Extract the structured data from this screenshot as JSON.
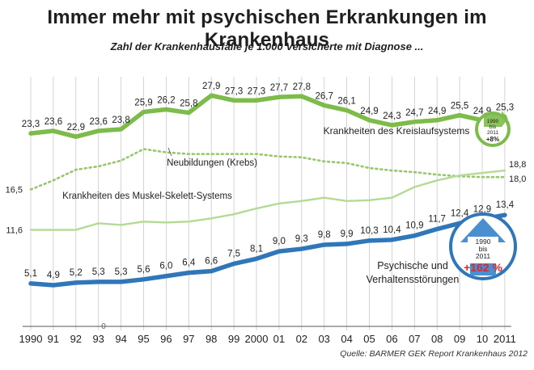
{
  "header": {
    "title": "Immer mehr mit psychischen Erkrankungen im Krankenhaus",
    "subtitle": "Zahl der Krankenhausfälle je 1.000 Versicherte mit Diagnose ..."
  },
  "source": "Quelle: BARMER GEK Report Krankenhaus 2012",
  "colors": {
    "kreislauf": "#7dbb4a",
    "neubildungen": "#97c76b",
    "muskel": "#b5da95",
    "psychisch": "#2f77b8",
    "badge_red": "#d9282f",
    "badge_blue": "#4a8fd0"
  },
  "chart_data": {
    "type": "line",
    "x": [
      "1990",
      "91",
      "92",
      "93",
      "94",
      "95",
      "96",
      "97",
      "98",
      "99",
      "2000",
      "01",
      "02",
      "03",
      "04",
      "05",
      "06",
      "07",
      "08",
      "09",
      "10",
      "2011"
    ],
    "zero_label": "0",
    "ylim": [
      0,
      30
    ],
    "grid": true,
    "series": [
      {
        "name": "Krankheiten des Kreislaufsystems",
        "style": "solid-thick",
        "values": [
          23.3,
          23.6,
          22.9,
          23.6,
          23.8,
          25.9,
          26.2,
          25.8,
          27.9,
          27.3,
          27.3,
          27.7,
          27.8,
          26.7,
          26.1,
          24.9,
          24.3,
          24.7,
          24.9,
          25.5,
          24.9,
          25.3
        ],
        "value_labels": [
          "23,3",
          "23,6",
          "22,9",
          "23,6",
          "23,8",
          "25,9",
          "26,2",
          "25,8",
          "27,9",
          "27,3",
          "27,3",
          "27,7",
          "27,8",
          "26,7",
          "26,1",
          "24,9",
          "24,3",
          "24,7",
          "24,9",
          "25,5",
          "24,9",
          "25,3"
        ]
      },
      {
        "name": "Neubildungen (Krebs)",
        "style": "dotted",
        "values": [
          16.5,
          17.6,
          18.9,
          19.3,
          20.0,
          21.4,
          21.0,
          20.8,
          20.8,
          20.8,
          20.8,
          20.5,
          20.4,
          19.9,
          19.7,
          19.1,
          18.8,
          18.6,
          18.3,
          18.1,
          18.0,
          18.0
        ],
        "value_labels": [
          "16,5",
          "18,0"
        ]
      },
      {
        "name": "Krankheiten des Muskel-Skelett-Systems",
        "style": "solid",
        "values": [
          11.6,
          11.6,
          11.6,
          12.4,
          12.2,
          12.6,
          12.5,
          12.6,
          13.0,
          13.5,
          14.2,
          14.8,
          15.1,
          15.5,
          15.1,
          15.2,
          15.5,
          16.8,
          17.6,
          18.2,
          18.5,
          18.8
        ],
        "value_labels": [
          "11,6",
          "18,8"
        ]
      },
      {
        "name": "Psychische und Verhaltensstörungen",
        "style": "solid-thick",
        "values": [
          5.1,
          4.9,
          5.2,
          5.3,
          5.3,
          5.6,
          6.0,
          6.4,
          6.6,
          7.5,
          8.1,
          9.0,
          9.3,
          9.8,
          9.9,
          10.3,
          10.4,
          10.9,
          11.7,
          12.4,
          12.9,
          13.4
        ],
        "value_labels": [
          "5,1",
          "4,9",
          "5,2",
          "5,3",
          "5,3",
          "5,6",
          "6,0",
          "6,4",
          "6,6",
          "7,5",
          "8,1",
          "9,0",
          "9,3",
          "9,8",
          "9,9",
          "10,3",
          "10,4",
          "10,9",
          "11,7",
          "12,4",
          "12,9",
          "13,4"
        ]
      }
    ],
    "series_labels": {
      "kreislauf_line1": "Krankheiten des Kreislaufsystems",
      "neubildungen": "Neubildungen (Krebs)",
      "muskel": "Krankheiten des Muskel-Skelett-Systems",
      "psychisch_line1": "Psychische und",
      "psychisch_line2": "Verhaltensstörungen"
    },
    "badges": [
      {
        "name": "kreislauf-change",
        "line1": "1990",
        "line2": "bis",
        "line3": "2011",
        "change": "+8%"
      },
      {
        "name": "psychisch-change",
        "line1": "1990",
        "line2": "bis",
        "line3": "2011",
        "change": "+162 %"
      }
    ]
  }
}
